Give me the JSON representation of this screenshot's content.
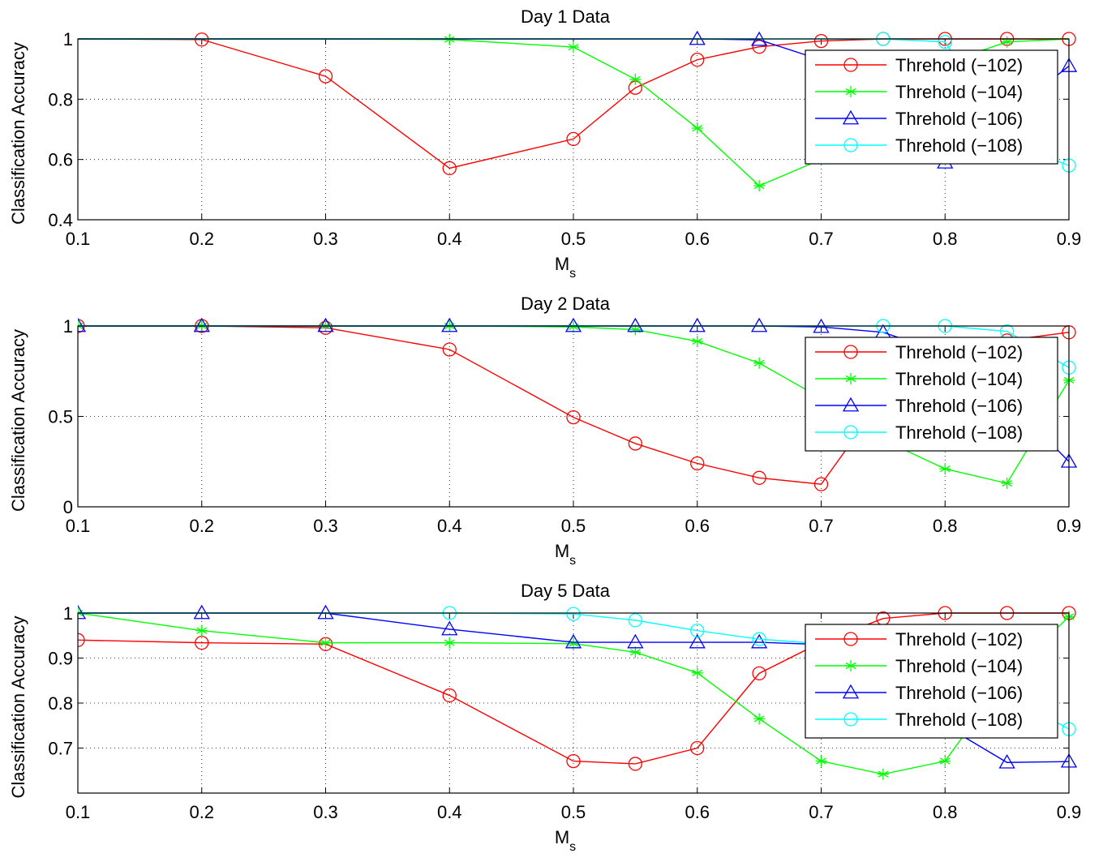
{
  "chart_data": [
    {
      "type": "line",
      "title": "Day 1 Data",
      "xlabel_main": "M",
      "xlabel_sub": "s",
      "ylabel": "Classification Accuracy",
      "xlim": [
        0.1,
        0.9
      ],
      "ylim": [
        0.4,
        1.0
      ],
      "xticks": [
        "0.1",
        "0.2",
        "0.3",
        "0.4",
        "0.5",
        "0.6",
        "0.7",
        "0.8",
        "0.9"
      ],
      "yticks": [
        0.4,
        0.6,
        0.8,
        1
      ],
      "ytick_labels": [
        "0.4",
        "0.6",
        "0.8",
        "1"
      ],
      "grid": "dotted",
      "legend_position": "right",
      "series": [
        {
          "name": "Threhold (−102)",
          "color": "#ff0000",
          "marker": "circle",
          "x": [
            0.1,
            0.2,
            0.3,
            0.4,
            0.5,
            0.55,
            0.6,
            0.65,
            0.7,
            0.75,
            0.8,
            0.85,
            0.9
          ],
          "y": [
            1.0,
            0.998,
            0.876,
            0.571,
            0.668,
            0.838,
            0.931,
            0.974,
            0.993,
            1.0,
            1.0,
            1.0,
            1.0
          ],
          "markers": [
            0.2,
            0.3,
            0.4,
            0.5,
            0.55,
            0.6,
            0.65,
            0.7,
            0.75,
            0.8,
            0.85,
            0.9
          ]
        },
        {
          "name": "Threhold (−104)",
          "color": "#00ff00",
          "marker": "star",
          "x": [
            0.1,
            0.2,
            0.3,
            0.4,
            0.5,
            0.55,
            0.6,
            0.65,
            0.7,
            0.75,
            0.8,
            0.85,
            0.9
          ],
          "y": [
            1.0,
            1.0,
            1.0,
            0.998,
            0.973,
            0.866,
            0.704,
            0.513,
            0.6,
            0.62,
            0.92,
            0.99,
            1.0
          ],
          "markers": [
            0.4,
            0.5,
            0.55,
            0.6,
            0.65,
            0.7,
            0.75,
            0.8,
            0.85
          ]
        },
        {
          "name": "Threhold (−106)",
          "color": "#0000ff",
          "marker": "triangle",
          "x": [
            0.1,
            0.2,
            0.3,
            0.4,
            0.5,
            0.55,
            0.6,
            0.65,
            0.7,
            0.75,
            0.8,
            0.85,
            0.9
          ],
          "y": [
            1.0,
            1.0,
            1.0,
            1.0,
            1.0,
            1.0,
            1.0,
            0.997,
            0.93,
            0.74,
            0.59,
            0.75,
            0.91
          ],
          "markers": [
            0.6,
            0.65,
            0.7,
            0.75,
            0.8,
            0.85,
            0.9
          ]
        },
        {
          "name": "Threhold (−108)",
          "color": "#00ffff",
          "marker": "circle",
          "x": [
            0.1,
            0.2,
            0.3,
            0.4,
            0.5,
            0.55,
            0.6,
            0.65,
            0.7,
            0.75,
            0.8,
            0.85,
            0.9
          ],
          "y": [
            1.0,
            1.0,
            1.0,
            1.0,
            1.0,
            1.0,
            1.0,
            1.0,
            1.0,
            1.0,
            0.99,
            0.66,
            0.58
          ],
          "markers": [
            0.75,
            0.8,
            0.85,
            0.9
          ]
        }
      ]
    },
    {
      "type": "line",
      "title": "Day 2 Data",
      "xlabel_main": "M",
      "xlabel_sub": "s",
      "ylabel": "Classification Accuracy",
      "xlim": [
        0.1,
        0.9
      ],
      "ylim": [
        0,
        1.0
      ],
      "xticks": [
        "0.1",
        "0.2",
        "0.3",
        "0.4",
        "0.5",
        "0.6",
        "0.7",
        "0.8",
        "0.9"
      ],
      "yticks": [
        0,
        0.5,
        1
      ],
      "ytick_labels": [
        "0",
        "0.5",
        "1"
      ],
      "grid": "dotted",
      "legend_position": "right",
      "series": [
        {
          "name": "Threhold (−102)",
          "color": "#ff0000",
          "marker": "circle",
          "x": [
            0.1,
            0.2,
            0.3,
            0.4,
            0.5,
            0.55,
            0.6,
            0.65,
            0.7,
            0.75,
            0.8,
            0.85,
            0.9
          ],
          "y": [
            1.0,
            1.0,
            0.99,
            0.87,
            0.495,
            0.35,
            0.24,
            0.16,
            0.125,
            0.6,
            0.85,
            0.92,
            0.965
          ],
          "markers": [
            0.1,
            0.2,
            0.3,
            0.4,
            0.5,
            0.55,
            0.6,
            0.65,
            0.7,
            0.75,
            0.8,
            0.85,
            0.9
          ]
        },
        {
          "name": "Threhold (−104)",
          "color": "#00ff00",
          "marker": "star",
          "x": [
            0.1,
            0.2,
            0.3,
            0.4,
            0.5,
            0.55,
            0.6,
            0.65,
            0.7,
            0.75,
            0.8,
            0.85,
            0.9
          ],
          "y": [
            1.0,
            1.0,
            1.0,
            1.0,
            0.995,
            0.98,
            0.915,
            0.795,
            0.6,
            0.37,
            0.21,
            0.13,
            0.7
          ],
          "markers": [
            0.1,
            0.2,
            0.3,
            0.4,
            0.5,
            0.55,
            0.6,
            0.65,
            0.7,
            0.75,
            0.8,
            0.85,
            0.9
          ]
        },
        {
          "name": "Threhold (−106)",
          "color": "#0000ff",
          "marker": "triangle",
          "x": [
            0.1,
            0.2,
            0.3,
            0.4,
            0.5,
            0.55,
            0.6,
            0.65,
            0.7,
            0.75,
            0.8,
            0.85,
            0.9
          ],
          "y": [
            1.0,
            1.0,
            1.0,
            1.0,
            1.0,
            1.0,
            1.0,
            1.0,
            0.995,
            0.965,
            0.85,
            0.6,
            0.25
          ],
          "markers": [
            0.1,
            0.2,
            0.3,
            0.4,
            0.5,
            0.55,
            0.6,
            0.65,
            0.7,
            0.75,
            0.8,
            0.85,
            0.9
          ]
        },
        {
          "name": "Threhold (−108)",
          "color": "#00ffff",
          "marker": "circle",
          "x": [
            0.1,
            0.2,
            0.3,
            0.4,
            0.5,
            0.55,
            0.6,
            0.65,
            0.7,
            0.75,
            0.8,
            0.85,
            0.9
          ],
          "y": [
            1.0,
            1.0,
            1.0,
            1.0,
            1.0,
            1.0,
            1.0,
            1.0,
            1.0,
            1.0,
            1.0,
            0.97,
            0.77
          ],
          "markers": [
            0.75,
            0.8,
            0.85,
            0.9
          ]
        }
      ]
    },
    {
      "type": "line",
      "title": "Day 5 Data",
      "xlabel_main": "M",
      "xlabel_sub": "s",
      "ylabel": "Classification Accuracy",
      "xlim": [
        0.1,
        0.9
      ],
      "ylim": [
        0.6,
        1.0
      ],
      "xticks": [
        "0.1",
        "0.2",
        "0.3",
        "0.4",
        "0.5",
        "0.6",
        "0.7",
        "0.8",
        "0.9"
      ],
      "yticks": [
        0.7,
        0.8,
        0.9,
        1
      ],
      "ytick_labels": [
        "0.7",
        "0.8",
        "0.9",
        "1"
      ],
      "grid": "dotted",
      "legend_position": "right",
      "series": [
        {
          "name": "Threhold (−102)",
          "color": "#ff0000",
          "marker": "circle",
          "x": [
            0.1,
            0.2,
            0.3,
            0.4,
            0.5,
            0.55,
            0.6,
            0.65,
            0.7,
            0.75,
            0.8,
            0.85,
            0.9
          ],
          "y": [
            0.94,
            0.934,
            0.931,
            0.817,
            0.671,
            0.665,
            0.7,
            0.866,
            0.935,
            0.988,
            1.0,
            1.0,
            1.0
          ],
          "markers": [
            0.1,
            0.2,
            0.3,
            0.4,
            0.5,
            0.55,
            0.6,
            0.65,
            0.75,
            0.8,
            0.85,
            0.9
          ]
        },
        {
          "name": "Threhold (−104)",
          "color": "#00ff00",
          "marker": "star",
          "x": [
            0.1,
            0.2,
            0.3,
            0.4,
            0.5,
            0.55,
            0.6,
            0.65,
            0.7,
            0.75,
            0.8,
            0.85,
            0.9
          ],
          "y": [
            1.0,
            0.961,
            0.934,
            0.934,
            0.932,
            0.913,
            0.867,
            0.765,
            0.671,
            0.642,
            0.671,
            0.86,
            0.992
          ],
          "markers": [
            0.1,
            0.2,
            0.3,
            0.4,
            0.5,
            0.55,
            0.6,
            0.65,
            0.7,
            0.75,
            0.8,
            0.9
          ]
        },
        {
          "name": "Threhold (−106)",
          "color": "#0000ff",
          "marker": "triangle",
          "x": [
            0.1,
            0.2,
            0.3,
            0.4,
            0.5,
            0.55,
            0.6,
            0.65,
            0.7,
            0.75,
            0.8,
            0.85,
            0.9
          ],
          "y": [
            1.0,
            1.0,
            1.0,
            0.964,
            0.935,
            0.935,
            0.935,
            0.935,
            0.93,
            0.86,
            0.75,
            0.668,
            0.67
          ],
          "markers": [
            0.1,
            0.2,
            0.3,
            0.4,
            0.5,
            0.55,
            0.6,
            0.65,
            0.85,
            0.9
          ]
        },
        {
          "name": "Threhold (−108)",
          "color": "#00ffff",
          "marker": "circle",
          "x": [
            0.1,
            0.2,
            0.3,
            0.4,
            0.5,
            0.55,
            0.6,
            0.65,
            0.7,
            0.75,
            0.8,
            0.85,
            0.9
          ],
          "y": [
            1.0,
            1.0,
            1.0,
            1.0,
            0.998,
            0.984,
            0.961,
            0.942,
            0.932,
            0.93,
            0.9,
            0.82,
            0.742
          ],
          "markers": [
            0.4,
            0.5,
            0.55,
            0.6,
            0.65,
            0.9
          ]
        }
      ]
    }
  ]
}
